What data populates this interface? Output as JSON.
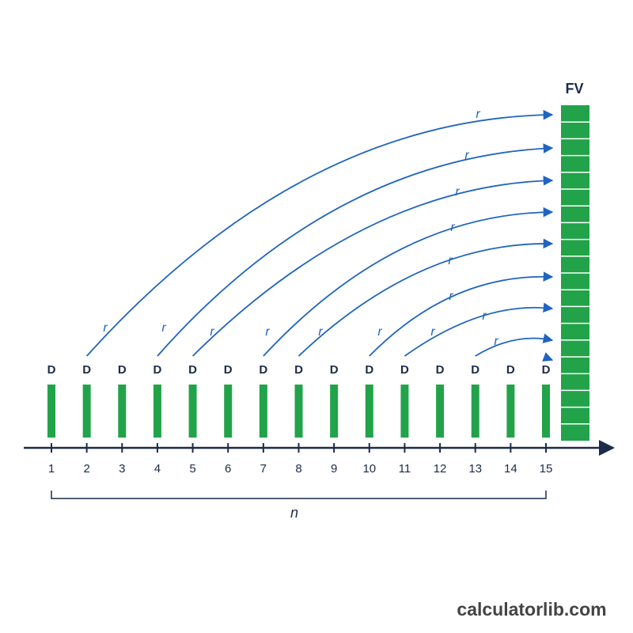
{
  "fv_label": "FV",
  "periods": [
    {
      "label": "1",
      "deposit": "D"
    },
    {
      "label": "2",
      "deposit": "D"
    },
    {
      "label": "3",
      "deposit": "D"
    },
    {
      "label": "4",
      "deposit": "D"
    },
    {
      "label": "5",
      "deposit": "D"
    },
    {
      "label": "6",
      "deposit": "D"
    },
    {
      "label": "7",
      "deposit": "D"
    },
    {
      "label": "8",
      "deposit": "D"
    },
    {
      "label": "9",
      "deposit": "D"
    },
    {
      "label": "10",
      "deposit": "D"
    },
    {
      "label": "11",
      "deposit": "D"
    },
    {
      "label": "12",
      "deposit": "D"
    },
    {
      "label": "13",
      "deposit": "D"
    },
    {
      "label": "14",
      "deposit": "D"
    },
    {
      "label": "15",
      "deposit": "D"
    }
  ],
  "rate_labels": [
    "r",
    "r",
    "r",
    "r",
    "r",
    "r",
    "r",
    "r",
    "r",
    "r",
    "r",
    "r",
    "r",
    "r",
    "r"
  ],
  "span_label": "n",
  "watermark": "calculatorlib.com"
}
